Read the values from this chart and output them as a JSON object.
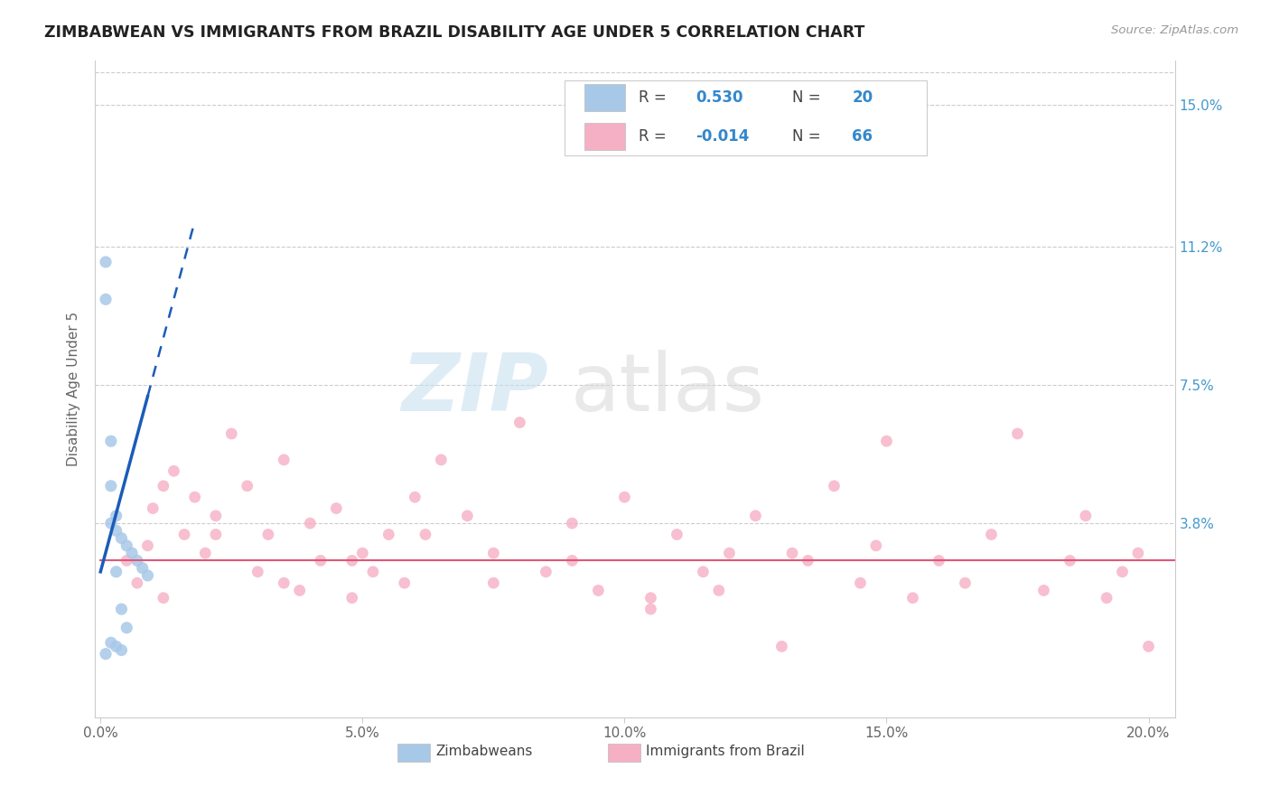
{
  "title": "ZIMBABWEAN VS IMMIGRANTS FROM BRAZIL DISABILITY AGE UNDER 5 CORRELATION CHART",
  "source": "Source: ZipAtlas.com",
  "ylabel": "Disability Age Under 5",
  "xlim": [
    -0.001,
    0.205
  ],
  "ylim": [
    -0.014,
    0.162
  ],
  "xticks": [
    0.0,
    0.05,
    0.1,
    0.15,
    0.2
  ],
  "xtick_labels": [
    "0.0%",
    "5.0%",
    "10.0%",
    "15.0%",
    "20.0%"
  ],
  "yticks": [
    0.038,
    0.075,
    0.112,
    0.15
  ],
  "ytick_labels": [
    "3.8%",
    "7.5%",
    "11.2%",
    "15.0%"
  ],
  "r_zimbabwe": "0.530",
  "n_zimbabwe": "20",
  "r_brazil": "-0.014",
  "n_brazil": "66",
  "color_zimbabwe": "#a8c8e8",
  "color_brazil": "#f5b0c5",
  "color_line_zimbabwe": "#1a5cb8",
  "color_line_brazil": "#e05878",
  "legend_label_1": "Zimbabweans",
  "legend_label_2": "Immigrants from Brazil",
  "zim_x": [
    0.001,
    0.001,
    0.001,
    0.002,
    0.002,
    0.002,
    0.002,
    0.003,
    0.003,
    0.003,
    0.003,
    0.004,
    0.004,
    0.004,
    0.005,
    0.005,
    0.006,
    0.007,
    0.008,
    0.009
  ],
  "zim_y": [
    0.108,
    0.098,
    0.003,
    0.06,
    0.048,
    0.038,
    0.006,
    0.04,
    0.036,
    0.025,
    0.005,
    0.034,
    0.015,
    0.004,
    0.032,
    0.01,
    0.03,
    0.028,
    0.026,
    0.024
  ],
  "bra_x": [
    0.005,
    0.007,
    0.009,
    0.01,
    0.012,
    0.014,
    0.016,
    0.018,
    0.02,
    0.022,
    0.025,
    0.028,
    0.03,
    0.032,
    0.035,
    0.038,
    0.04,
    0.042,
    0.045,
    0.048,
    0.05,
    0.052,
    0.055,
    0.058,
    0.06,
    0.065,
    0.07,
    0.075,
    0.08,
    0.085,
    0.09,
    0.095,
    0.1,
    0.105,
    0.11,
    0.115,
    0.12,
    0.125,
    0.13,
    0.135,
    0.14,
    0.145,
    0.148,
    0.15,
    0.155,
    0.16,
    0.165,
    0.17,
    0.175,
    0.18,
    0.185,
    0.188,
    0.192,
    0.195,
    0.198,
    0.2,
    0.012,
    0.022,
    0.035,
    0.048,
    0.062,
    0.075,
    0.09,
    0.105,
    0.118,
    0.132
  ],
  "bra_y": [
    0.028,
    0.022,
    0.032,
    0.042,
    0.018,
    0.052,
    0.035,
    0.045,
    0.03,
    0.04,
    0.062,
    0.048,
    0.025,
    0.035,
    0.055,
    0.02,
    0.038,
    0.028,
    0.042,
    0.018,
    0.03,
    0.025,
    0.035,
    0.022,
    0.045,
    0.055,
    0.04,
    0.03,
    0.065,
    0.025,
    0.038,
    0.02,
    0.045,
    0.018,
    0.035,
    0.025,
    0.03,
    0.04,
    0.005,
    0.028,
    0.048,
    0.022,
    0.032,
    0.06,
    0.018,
    0.028,
    0.022,
    0.035,
    0.062,
    0.02,
    0.028,
    0.04,
    0.018,
    0.025,
    0.03,
    0.005,
    0.048,
    0.035,
    0.022,
    0.028,
    0.035,
    0.022,
    0.028,
    0.015,
    0.02,
    0.03
  ]
}
